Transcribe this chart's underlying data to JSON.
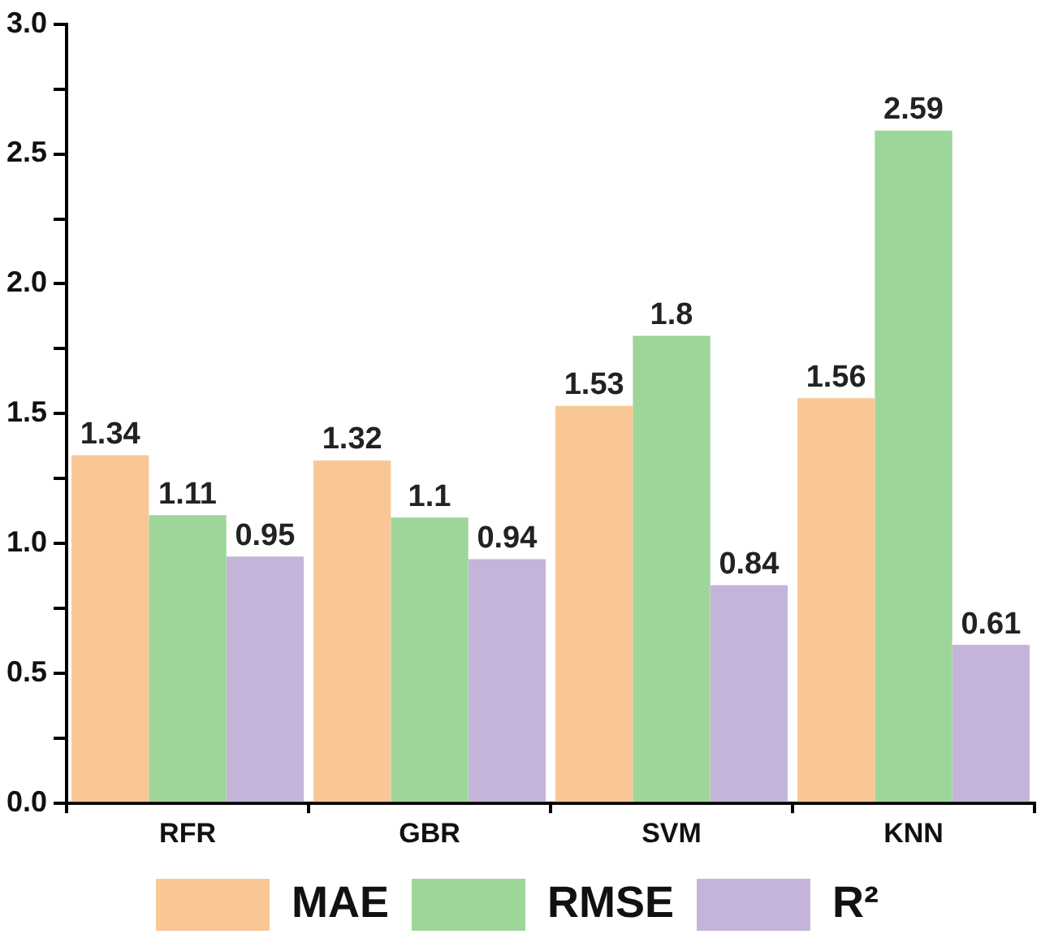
{
  "chart_data": {
    "type": "bar",
    "categories": [
      "RFR",
      "GBR",
      "SVM",
      "KNN"
    ],
    "series": [
      {
        "name": "MAE",
        "color": "#f9c795",
        "values": [
          1.34,
          1.32,
          1.53,
          1.56
        ]
      },
      {
        "name": "RMSE",
        "color": "#9ed69a",
        "values": [
          1.11,
          1.1,
          1.8,
          2.59
        ]
      },
      {
        "name": "R²",
        "color": "#c5b4d9",
        "values": [
          0.95,
          0.94,
          0.84,
          0.61
        ]
      }
    ],
    "ylim": [
      0,
      3
    ],
    "yticks": [
      {
        "value": 0,
        "label": "0.0"
      },
      {
        "value": 0.25,
        "label": null
      },
      {
        "value": 0.5,
        "label": "0.5"
      },
      {
        "value": 0.75,
        "label": null
      },
      {
        "value": 1,
        "label": "1.0"
      },
      {
        "value": 1.25,
        "label": null
      },
      {
        "value": 1.5,
        "label": "1.5"
      },
      {
        "value": 1.75,
        "label": null
      },
      {
        "value": 2,
        "label": "2.0"
      },
      {
        "value": 2.25,
        "label": null
      },
      {
        "value": 2.5,
        "label": "2.5"
      },
      {
        "value": 2.75,
        "label": null
      },
      {
        "value": 3,
        "label": "3.0"
      }
    ],
    "data_labels": true,
    "legend": "bottom",
    "grid": false
  }
}
